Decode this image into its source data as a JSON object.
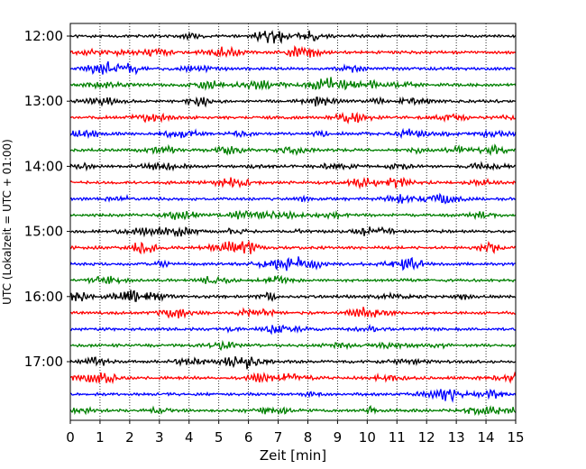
{
  "chart_data": {
    "type": "line",
    "title": "",
    "xlabel": "Zeit  [min]",
    "ylabel": "UTC (Lokalzeit = UTC + 01:00)",
    "xlim": [
      0,
      15
    ],
    "x_ticks": [
      "0",
      "1",
      "2",
      "3",
      "4",
      "5",
      "6",
      "7",
      "8",
      "9",
      "10",
      "11",
      "12",
      "13",
      "14",
      "15"
    ],
    "y_ticks": [
      "12:00",
      "13:00",
      "14:00",
      "15:00",
      "16:00",
      "17:00"
    ],
    "start_time": "12:00",
    "trace_interval_min": 15,
    "trace_count": 24,
    "trace_colors": [
      "#000000",
      "#ff0000",
      "#0000ff",
      "#008000"
    ],
    "vertical_grid": "dotted, every 1 min",
    "legend": "none"
  }
}
